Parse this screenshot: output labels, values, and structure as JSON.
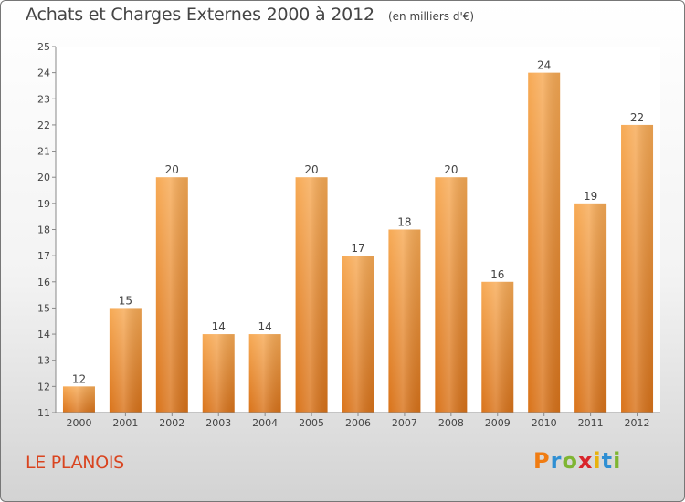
{
  "title": "Achats et Charges Externes 2000 à 2012",
  "unit_note": "(en milliers d'€)",
  "town": "LE PLANOIS",
  "brand": {
    "letters": [
      "P",
      "r",
      "o",
      "x",
      "i",
      "t",
      "i"
    ],
    "colors": [
      "#f07c12",
      "#2f8fd3",
      "#7fb532",
      "#d9252b",
      "#e8b20c",
      "#2f8fd3",
      "#7fb532"
    ]
  },
  "colors": {
    "bar_light": "#f7aa55",
    "bar_dark": "#d9731a",
    "text": "#444444",
    "town": "#d9441f"
  },
  "chart_data": {
    "type": "bar",
    "categories": [
      "2000",
      "2001",
      "2002",
      "2003",
      "2004",
      "2005",
      "2006",
      "2007",
      "2008",
      "2009",
      "2010",
      "2011",
      "2012"
    ],
    "values": [
      12,
      15,
      20,
      14,
      14,
      20,
      17,
      18,
      20,
      16,
      24,
      19,
      22
    ],
    "title": "Achats et Charges Externes 2000 à 2012",
    "ylabel": "",
    "xlabel": "",
    "ylim": [
      11,
      25
    ],
    "yticks": [
      11,
      12,
      13,
      14,
      15,
      16,
      17,
      18,
      19,
      20,
      21,
      22,
      23,
      24,
      25
    ],
    "grid": false,
    "data_labels": true
  }
}
